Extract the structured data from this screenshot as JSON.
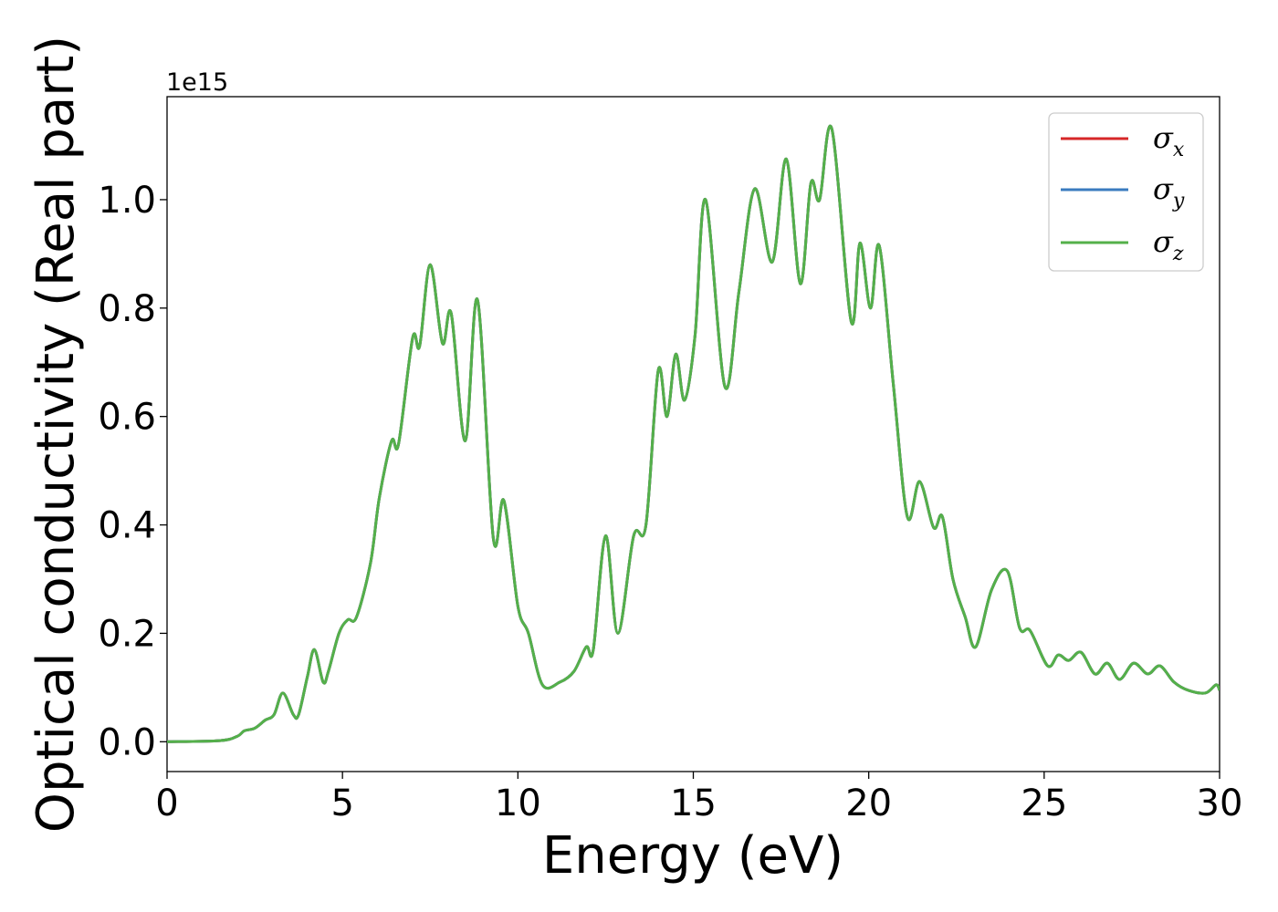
{
  "chart_data": {
    "type": "line",
    "title": "",
    "xlabel": "Energy (eV)",
    "ylabel": "Optical conductivity (Real part)",
    "y_offset_label": "1e15",
    "xlim": [
      0,
      30
    ],
    "ylim": [
      -0.055,
      1.19
    ],
    "x_ticks": [
      0,
      5,
      10,
      15,
      20,
      25,
      30
    ],
    "x_tick_labels": [
      "0",
      "5",
      "10",
      "15",
      "20",
      "25",
      "30"
    ],
    "y_ticks": [
      0.0,
      0.2,
      0.4,
      0.6,
      0.8,
      1.0
    ],
    "y_tick_labels": [
      "0.0",
      "0.2",
      "0.4",
      "0.6",
      "0.8",
      "1.0"
    ],
    "grid": false,
    "legend_position": "top-right",
    "series": [
      {
        "name": "σ",
        "subscript": "x",
        "color": "#d62728",
        "values_same_as": "z"
      },
      {
        "name": "σ",
        "subscript": "y",
        "color": "#3a7bbf",
        "values_same_as": "z"
      },
      {
        "name": "σ",
        "subscript": "z",
        "color": "#54b04a"
      }
    ],
    "x": [
      0,
      1.5,
      2.0,
      2.2,
      2.5,
      2.8,
      3.05,
      3.3,
      3.6,
      3.75,
      4.0,
      4.2,
      4.45,
      4.6,
      4.9,
      5.15,
      5.4,
      5.8,
      6.05,
      6.4,
      6.6,
      7.0,
      7.2,
      7.5,
      7.85,
      8.1,
      8.5,
      8.85,
      9.3,
      9.6,
      10.0,
      10.3,
      10.7,
      11.2,
      11.6,
      11.95,
      12.15,
      12.5,
      12.85,
      13.3,
      13.65,
      14.0,
      14.25,
      14.5,
      14.75,
      15.05,
      15.35,
      15.9,
      16.3,
      16.75,
      17.25,
      17.65,
      18.05,
      18.35,
      18.6,
      18.95,
      19.5,
      19.75,
      20.05,
      20.3,
      20.7,
      21.1,
      21.45,
      21.85,
      22.1,
      22.4,
      22.75,
      23.05,
      23.5,
      23.95,
      24.3,
      24.6,
      25.1,
      25.4,
      25.7,
      26.05,
      26.45,
      26.8,
      27.15,
      27.55,
      27.95,
      28.3,
      28.7,
      29.1,
      29.6,
      29.9,
      30.0
    ],
    "values": [
      0.0,
      0.002,
      0.01,
      0.02,
      0.025,
      0.04,
      0.05,
      0.09,
      0.05,
      0.05,
      0.12,
      0.17,
      0.11,
      0.13,
      0.2,
      0.225,
      0.23,
      0.33,
      0.45,
      0.555,
      0.55,
      0.745,
      0.73,
      0.88,
      0.735,
      0.79,
      0.555,
      0.815,
      0.375,
      0.445,
      0.25,
      0.2,
      0.105,
      0.11,
      0.13,
      0.175,
      0.17,
      0.38,
      0.2,
      0.38,
      0.4,
      0.685,
      0.6,
      0.715,
      0.63,
      0.75,
      1.0,
      0.655,
      0.83,
      1.02,
      0.885,
      1.075,
      0.845,
      1.03,
      1.0,
      1.13,
      0.775,
      0.92,
      0.8,
      0.915,
      0.66,
      0.415,
      0.48,
      0.395,
      0.415,
      0.3,
      0.23,
      0.175,
      0.28,
      0.315,
      0.21,
      0.205,
      0.14,
      0.16,
      0.15,
      0.165,
      0.125,
      0.145,
      0.115,
      0.145,
      0.125,
      0.14,
      0.11,
      0.095,
      0.09,
      0.105,
      0.095
    ]
  }
}
